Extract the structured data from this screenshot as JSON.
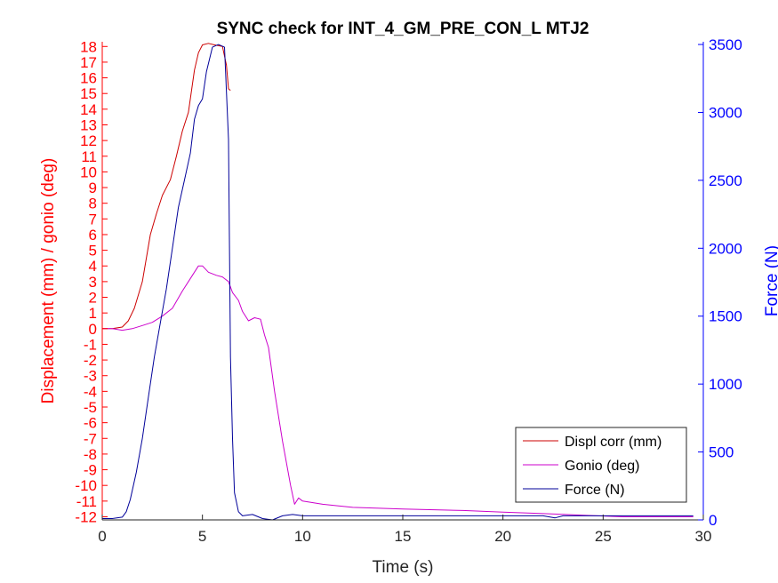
{
  "chart_data": {
    "type": "line",
    "title": "SYNC check for INT_4_GM_PRE_CON_L MTJ2",
    "xlabel": "Time (s)",
    "ylabel_left": "Displacement (mm) / gonio (deg)",
    "ylabel_right": "Force (N)",
    "xlim": [
      0,
      30
    ],
    "ylim_left": [
      -12.2,
      18.3
    ],
    "ylim_right": [
      0,
      3520
    ],
    "x_ticks": [
      0,
      5,
      10,
      15,
      20,
      25,
      30
    ],
    "y_left_ticks": [
      -12,
      -11,
      -10,
      -9,
      -8,
      -7,
      -6,
      -5,
      -4,
      -3,
      -2,
      -1,
      0,
      1,
      2,
      3,
      4,
      5,
      6,
      7,
      8,
      9,
      10,
      11,
      12,
      13,
      14,
      15,
      16,
      17,
      18
    ],
    "y_right_ticks": [
      0,
      500,
      1000,
      1500,
      2000,
      2500,
      3000,
      3500
    ],
    "grid": false,
    "legend_position": "bottom-right",
    "colors": {
      "left_axis": "#ff0000",
      "right_axis": "#0000ff"
    },
    "series": [
      {
        "name": "Displ corr (mm)",
        "axis": "left",
        "color": "#cc0000",
        "x": [
          0.0,
          0.5,
          1.0,
          1.3,
          1.6,
          2.0,
          2.4,
          2.7,
          3.0,
          3.4,
          3.7,
          4.0,
          4.3,
          4.6,
          4.8,
          5.0,
          5.3,
          5.6,
          6.0,
          6.2,
          6.3,
          6.4
        ],
        "y": [
          0.0,
          0.0,
          0.1,
          0.5,
          1.3,
          3.0,
          6.0,
          7.3,
          8.5,
          9.5,
          11.0,
          12.6,
          13.8,
          16.5,
          17.6,
          18.1,
          18.2,
          18.1,
          18.0,
          16.8,
          15.3,
          15.2
        ]
      },
      {
        "name": "Gonio (deg)",
        "axis": "left",
        "color": "#cc00cc",
        "x": [
          0.0,
          0.5,
          1.0,
          1.5,
          2.0,
          2.5,
          3.0,
          3.5,
          4.0,
          4.5,
          4.8,
          5.0,
          5.3,
          5.7,
          6.0,
          6.3,
          6.5,
          6.8,
          7.0,
          7.3,
          7.6,
          7.9,
          8.1,
          8.3,
          8.6,
          9.0,
          9.4,
          9.6,
          9.8,
          10.0,
          11.0,
          12.5,
          15.0,
          18.0,
          20.0,
          22.0,
          24.0,
          26.0,
          28.0,
          29.5
        ],
        "y": [
          0.0,
          0.0,
          -0.1,
          0.0,
          0.2,
          0.4,
          0.8,
          1.3,
          2.4,
          3.4,
          4.0,
          4.0,
          3.6,
          3.4,
          3.3,
          3.0,
          2.3,
          1.8,
          1.1,
          0.5,
          0.7,
          0.6,
          -0.4,
          -1.2,
          -4.0,
          -7.2,
          -10.0,
          -11.2,
          -10.8,
          -11.0,
          -11.2,
          -11.4,
          -11.5,
          -11.6,
          -11.7,
          -11.8,
          -11.9,
          -12.0,
          -12.0,
          -12.0
        ]
      },
      {
        "name": "Force (N)",
        "axis": "right",
        "color": "#000099",
        "x": [
          0.0,
          0.5,
          1.0,
          1.2,
          1.4,
          1.7,
          2.0,
          2.3,
          2.6,
          2.9,
          3.2,
          3.5,
          3.8,
          4.1,
          4.4,
          4.6,
          4.8,
          5.0,
          5.2,
          5.5,
          5.8,
          6.1,
          6.3,
          6.4,
          6.5,
          6.6,
          6.8,
          7.0,
          7.5,
          8.0,
          8.5,
          9.0,
          9.5,
          10.0,
          15.0,
          20.0,
          22.0,
          22.6,
          23.0,
          25.0,
          26.0,
          28.0,
          29.5
        ],
        "y": [
          10,
          10,
          20,
          60,
          150,
          350,
          600,
          900,
          1200,
          1450,
          1700,
          2000,
          2300,
          2500,
          2700,
          2950,
          3050,
          3100,
          3300,
          3480,
          3500,
          3480,
          2800,
          1200,
          600,
          200,
          60,
          30,
          40,
          10,
          0,
          30,
          40,
          30,
          30,
          30,
          30,
          15,
          30,
          30,
          30,
          30,
          30
        ]
      }
    ]
  }
}
